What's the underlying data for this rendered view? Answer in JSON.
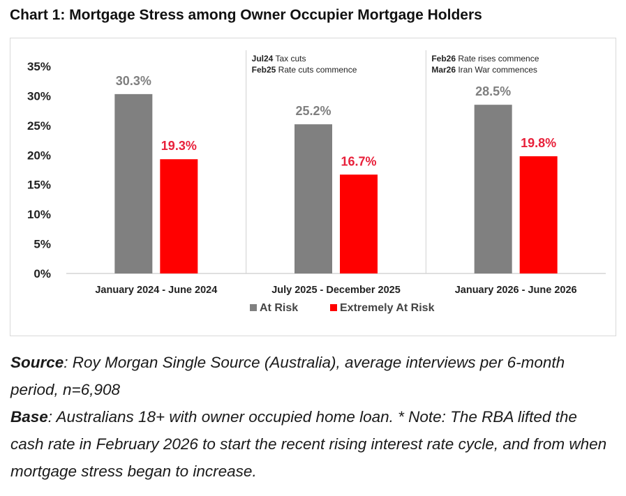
{
  "title": "Chart 1: Mortgage Stress among Owner Occupier Mortgage Holders",
  "chart_data": {
    "type": "bar",
    "categories": [
      "January 2024 - June 2024",
      "July 2025 - December 2025",
      "January 2026 - June 2026"
    ],
    "series": [
      {
        "name": "At Risk",
        "values": [
          30.3,
          25.2,
          28.5
        ],
        "labels": [
          "30.3%",
          "25.2%",
          "28.5%"
        ],
        "color": "#808080"
      },
      {
        "name": "Extremely At Risk",
        "values": [
          19.3,
          16.7,
          19.8
        ],
        "labels": [
          "19.3%",
          "16.7%",
          "19.8%"
        ],
        "color": "#ff0000"
      }
    ],
    "ylim": [
      0,
      35
    ],
    "yticks": [
      "0%",
      "5%",
      "10%",
      "15%",
      "20%",
      "25%",
      "30%",
      "35%"
    ],
    "grid": false,
    "legend": "bottom",
    "label_colors": {
      "At Risk": "#7f7f7f",
      "Extremely At Risk": "#e8203a"
    },
    "annotations": [
      {
        "lines": [
          {
            "bold": "Jul24",
            "text": " Tax cuts"
          },
          {
            "bold": "Feb25",
            "text": " Rate cuts commence"
          }
        ]
      },
      {
        "lines": [
          {
            "bold": "Feb26",
            "text": " Rate rises commence"
          },
          {
            "bold": "Mar26",
            "text": " Iran War commences"
          }
        ]
      }
    ]
  },
  "footnote": {
    "source_label": "Source",
    "source_text": ": Roy Morgan Single Source (Australia), average interviews per 6-month period, n=6,908",
    "base_label": "Base",
    "base_text": ": Australians 18+ with owner occupied home loan. * Note: The RBA lifted the cash rate in February 2026 to start the recent rising interest rate cycle, and from when mortgage stress began to increase."
  }
}
